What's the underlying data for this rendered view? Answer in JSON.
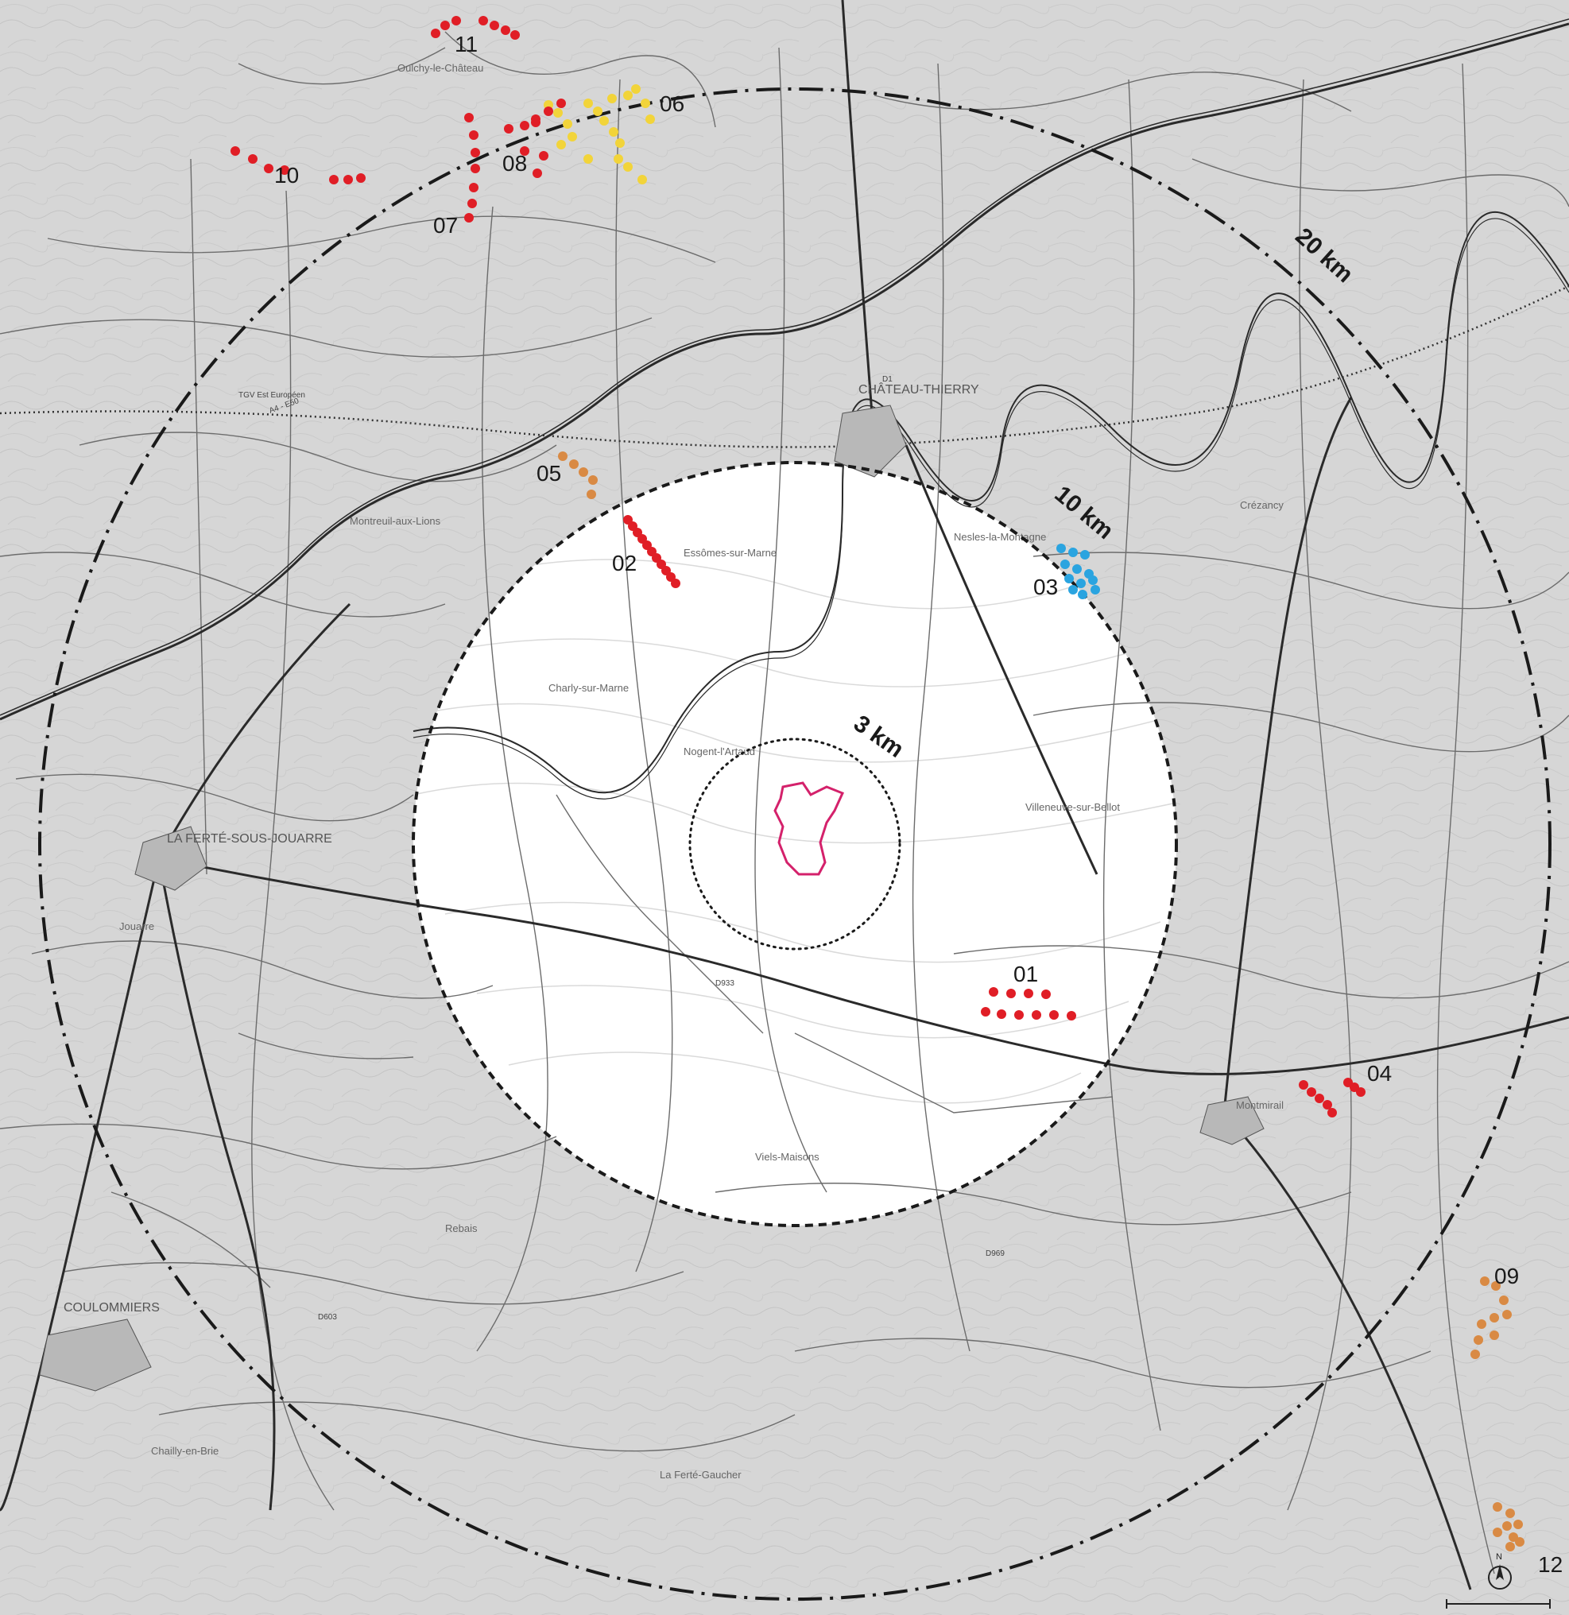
{
  "map": {
    "rings": [
      {
        "id": "ring-3km",
        "label": "3 km",
        "style": "dotted"
      },
      {
        "id": "ring-10km",
        "label": "10 km",
        "style": "dashed"
      },
      {
        "id": "ring-20km",
        "label": "20 km",
        "style": "dash-dot"
      }
    ],
    "site_outline": {
      "color": "#d4216b"
    },
    "sites": [
      {
        "id": "01",
        "label": "01",
        "color": "#e01e26"
      },
      {
        "id": "02",
        "label": "02",
        "color": "#e01e26"
      },
      {
        "id": "03",
        "label": "03",
        "color": "#2aa4e0"
      },
      {
        "id": "04",
        "label": "04",
        "color": "#e01e26"
      },
      {
        "id": "05",
        "label": "05",
        "color": "#d98a44"
      },
      {
        "id": "06",
        "label": "06",
        "color": "#f2d43a"
      },
      {
        "id": "07",
        "label": "07",
        "color": "#e01e26"
      },
      {
        "id": "08",
        "label": "08",
        "color": "#e01e26"
      },
      {
        "id": "09",
        "label": "09",
        "color": "#d98a44"
      },
      {
        "id": "10",
        "label": "10",
        "color": "#e01e26"
      },
      {
        "id": "11",
        "label": "11",
        "color": "#e01e26"
      },
      {
        "id": "12",
        "label": "12",
        "color": "#d98a44"
      }
    ],
    "places": {
      "chateau_thierry": "CHÂTEAU-THIERRY",
      "la_ferte": "LA FERTÉ-SOUS-JOUARRE",
      "coulommiers": "COULOMMIERS",
      "montmirail": "Montmirail",
      "charly": "Charly-sur-Marne",
      "nogent": "Nogent-l'Artaud",
      "viels_maisons": "Viels-Maisons",
      "jouarre": "Jouarre",
      "montreuil": "Montreuil-aux-Lions",
      "chailly": "Chailly-en-Brie",
      "rebais": "Rebais",
      "la_ferte_gaucher": "La Ferté-Gaucher",
      "nesles": "Nesles-la-Montagne",
      "crezancy": "Crézancy",
      "oulchy": "Oulchy-le-Château",
      "essomes": "Essômes-sur-Marne",
      "villeneuve": "Villeneuve-sur-Bellot"
    },
    "road_labels": {
      "a4": "A4 - E50",
      "tgv": "TGV Est Européen",
      "d1": "D1",
      "d933": "D933",
      "d603": "D603",
      "d969": "D969"
    },
    "compass_letter": "N",
    "colors": {
      "background": "#d6d6d6",
      "inner_disc": "#ffffff",
      "road_major": "#2a2a2a",
      "road_minor": "#6c6c6c"
    }
  }
}
